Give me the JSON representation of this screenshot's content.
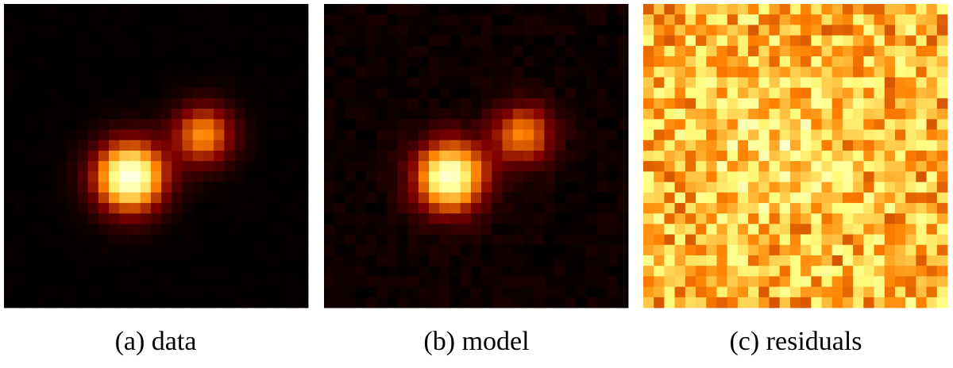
{
  "panels": [
    {
      "caption": "(a) data"
    },
    {
      "caption": "(b) model"
    },
    {
      "caption": "(c) residuals"
    }
  ]
}
